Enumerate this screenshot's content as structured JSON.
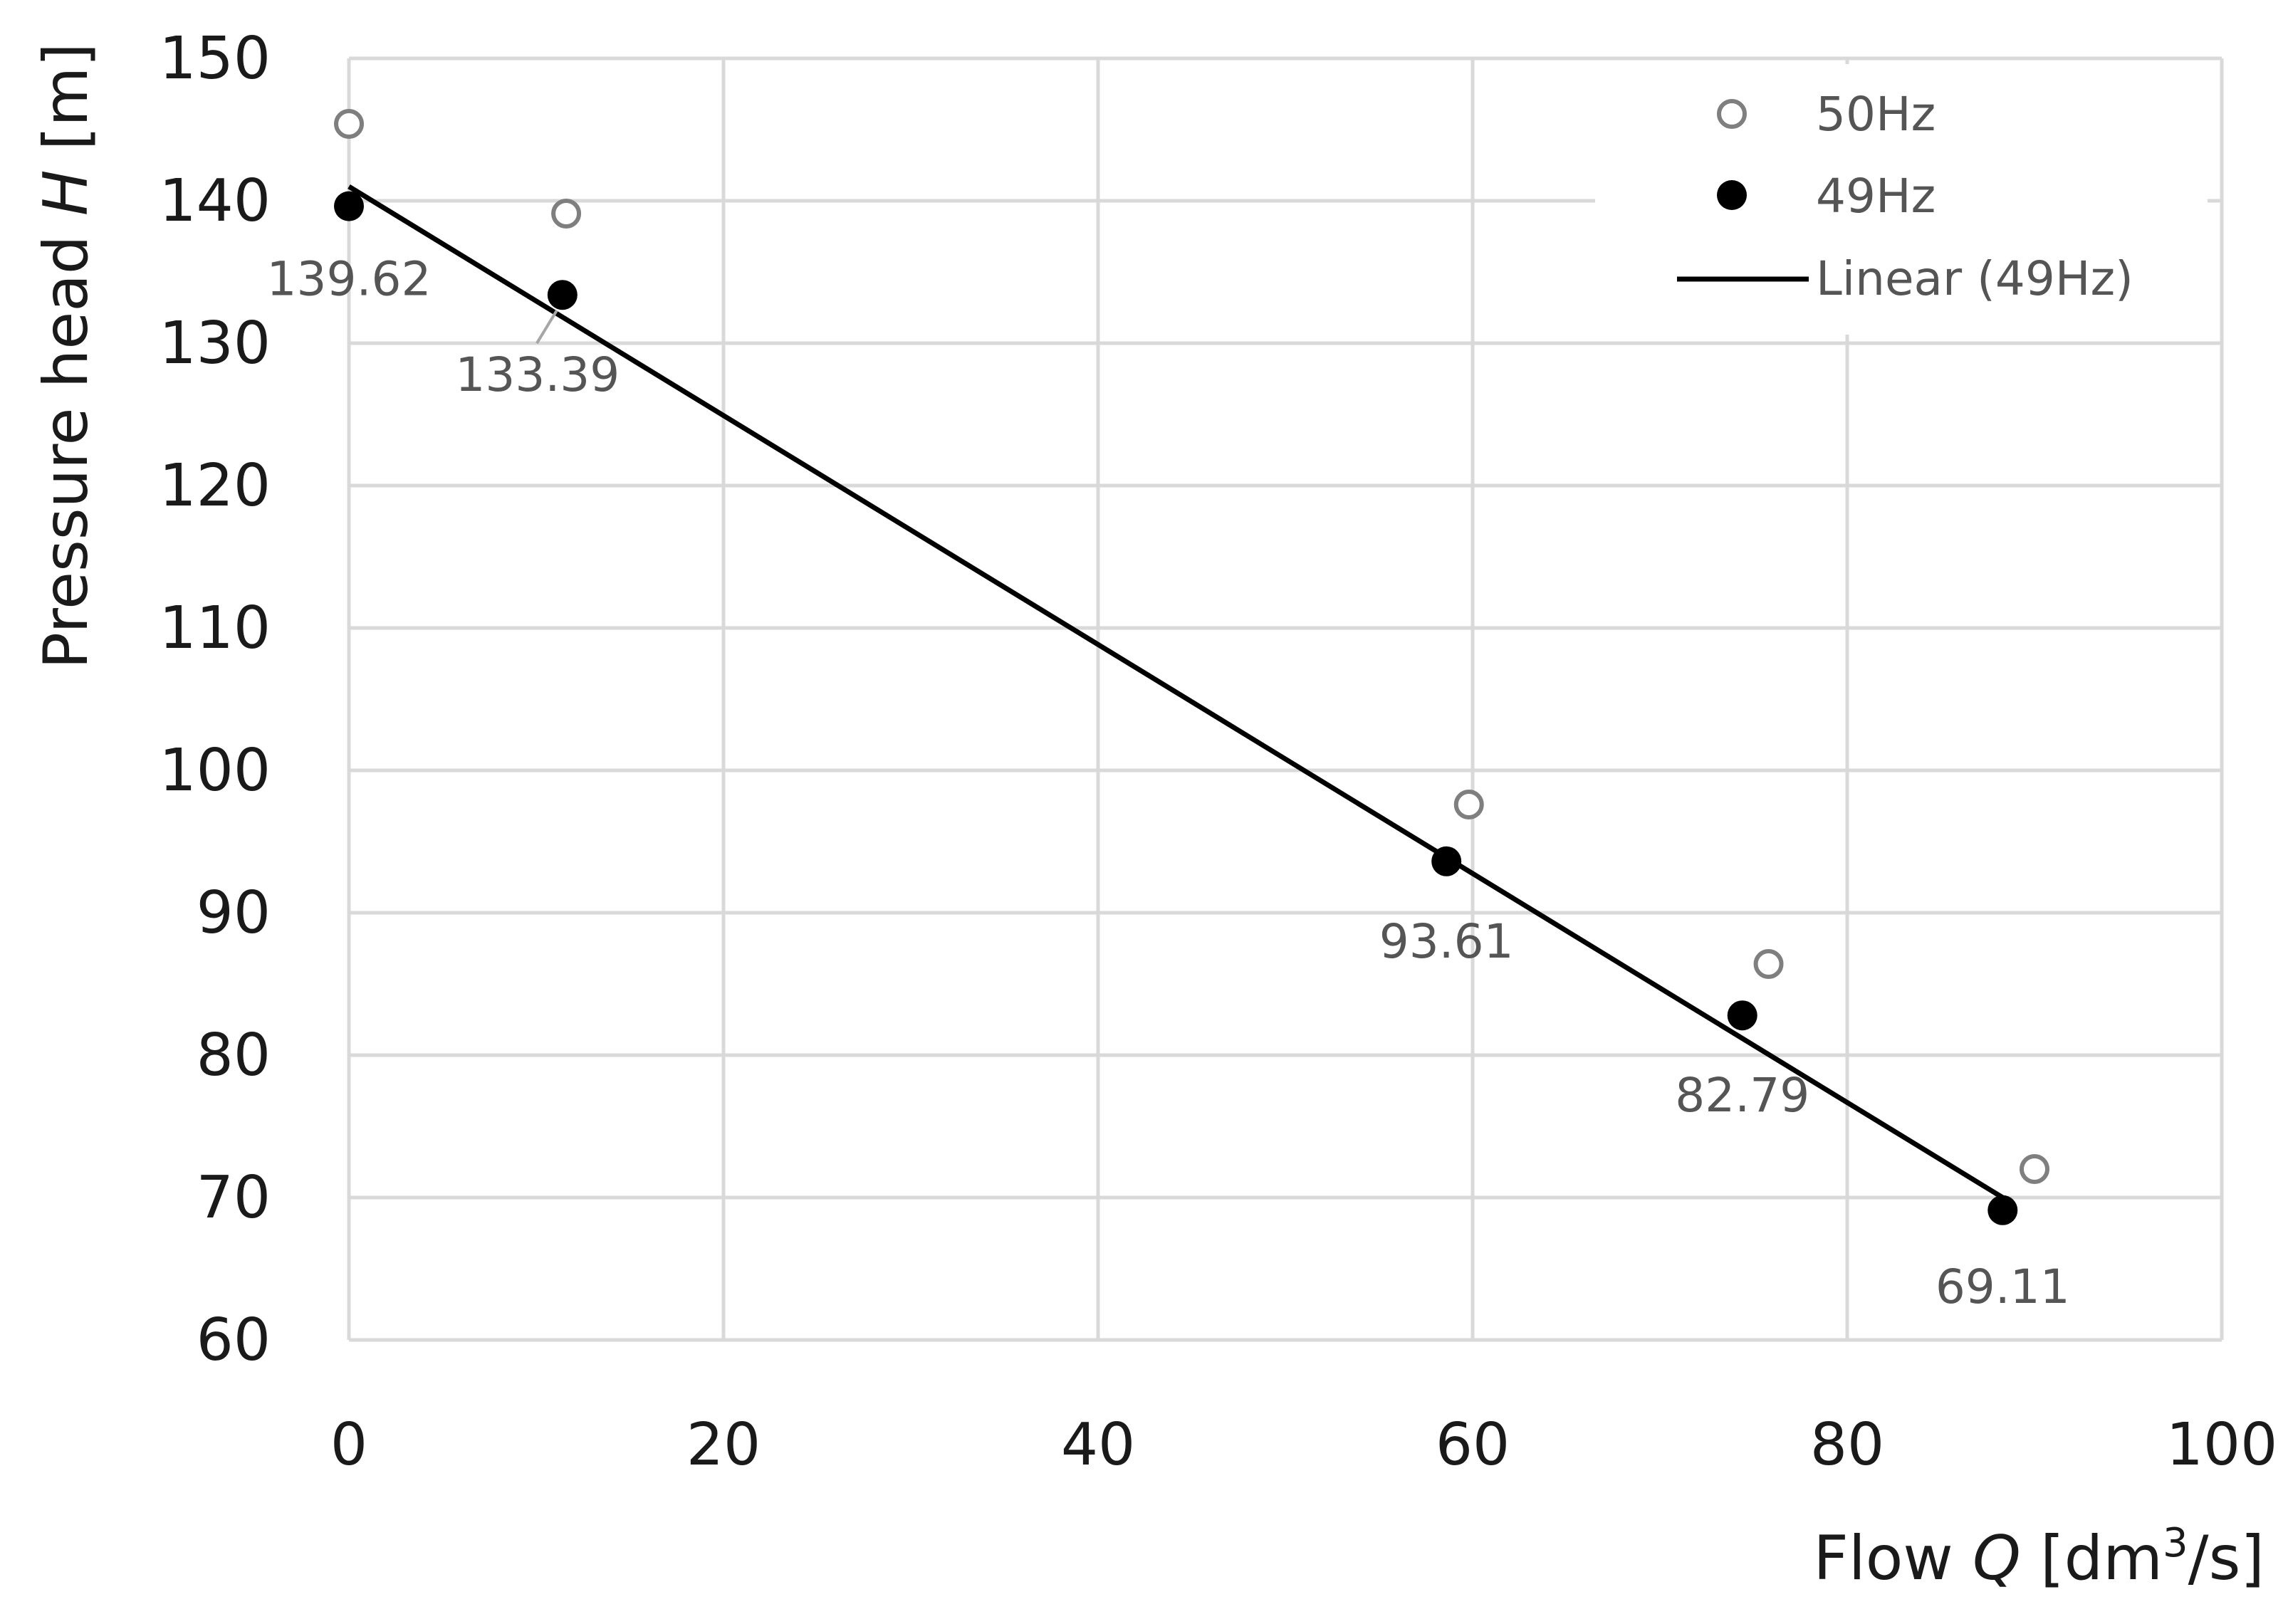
{
  "chart_data": {
    "type": "scatter",
    "xlabel": {
      "prefix": "Flow ",
      "symbol": "Q",
      "unit_before": " [dm",
      "sup": "3",
      "unit_after": "/s]"
    },
    "ylabel": {
      "prefix": "Pressure head ",
      "symbol": "H",
      "unit": " [m]"
    },
    "xlim": [
      0,
      100
    ],
    "ylim": [
      60,
      150
    ],
    "x_ticks": [
      0,
      20,
      40,
      60,
      80,
      100
    ],
    "y_ticks": [
      60,
      70,
      80,
      90,
      100,
      110,
      120,
      130,
      140,
      150
    ],
    "grid": true,
    "legend_position": "top-right",
    "series": [
      {
        "name": "50Hz",
        "marker": "open-circle",
        "color": "#7f7f7f",
        "points": [
          {
            "x": 0,
            "y": 145.4
          },
          {
            "x": 11.6,
            "y": 139.1
          },
          {
            "x": 59.8,
            "y": 97.6
          },
          {
            "x": 75.8,
            "y": 86.4
          },
          {
            "x": 90.0,
            "y": 72.0
          }
        ]
      },
      {
        "name": "49Hz",
        "marker": "filled-circle",
        "color": "#000000",
        "points": [
          {
            "x": 0,
            "y": 139.62,
            "label": "139.62"
          },
          {
            "x": 11.4,
            "y": 133.39,
            "label": "133.39"
          },
          {
            "x": 58.6,
            "y": 93.61,
            "label": "93.61"
          },
          {
            "x": 74.4,
            "y": 82.79,
            "label": "82.79"
          },
          {
            "x": 88.3,
            "y": 69.11,
            "label": "69.11"
          }
        ]
      }
    ],
    "trendline": {
      "name": "Linear (49Hz)",
      "type": "linear",
      "color": "#000000",
      "x": [
        0,
        88.3
      ],
      "y": [
        141.0,
        70.0
      ]
    }
  }
}
